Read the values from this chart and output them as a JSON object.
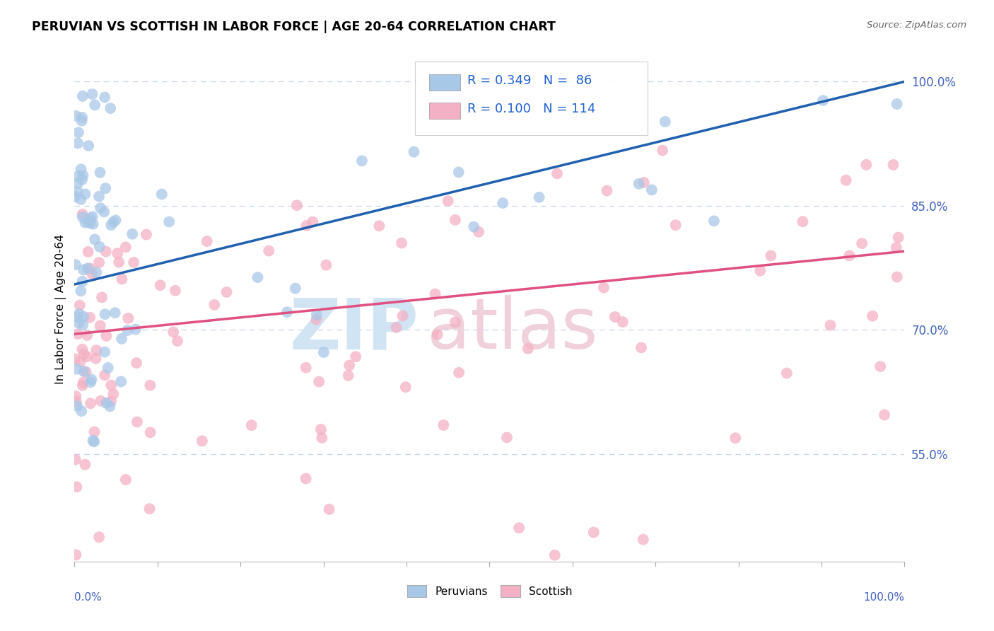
{
  "title": "PERUVIAN VS SCOTTISH IN LABOR FORCE | AGE 20-64 CORRELATION CHART",
  "source": "Source: ZipAtlas.com",
  "ylabel": "In Labor Force | Age 20-64",
  "yticks": [
    0.55,
    0.7,
    0.85,
    1.0
  ],
  "ytick_labels": [
    "55.0%",
    "70.0%",
    "85.0%",
    "100.0%"
  ],
  "legend_blue_r": "R = 0.349",
  "legend_blue_n": "N =  86",
  "legend_pink_r": "R = 0.100",
  "legend_pink_n": "N = 114",
  "blue_fill": "#a8c8e8",
  "pink_fill": "#f4b0c4",
  "trend_blue": "#2060b0",
  "trend_pink": "#e05080",
  "legend_text_color": "#2060d0",
  "right_axis_color": "#4060c0",
  "grid_color": "#c8d4e8",
  "ylim_low": 0.42,
  "ylim_high": 1.03,
  "xlim_low": 0.0,
  "xlim_high": 1.0,
  "blue_trend_x0": 0.0,
  "blue_trend_y0": 0.755,
  "blue_trend_x1": 1.0,
  "blue_trend_y1": 1.0,
  "pink_trend_x0": 0.0,
  "pink_trend_y0": 0.695,
  "pink_trend_x1": 1.0,
  "pink_trend_y1": 0.795
}
